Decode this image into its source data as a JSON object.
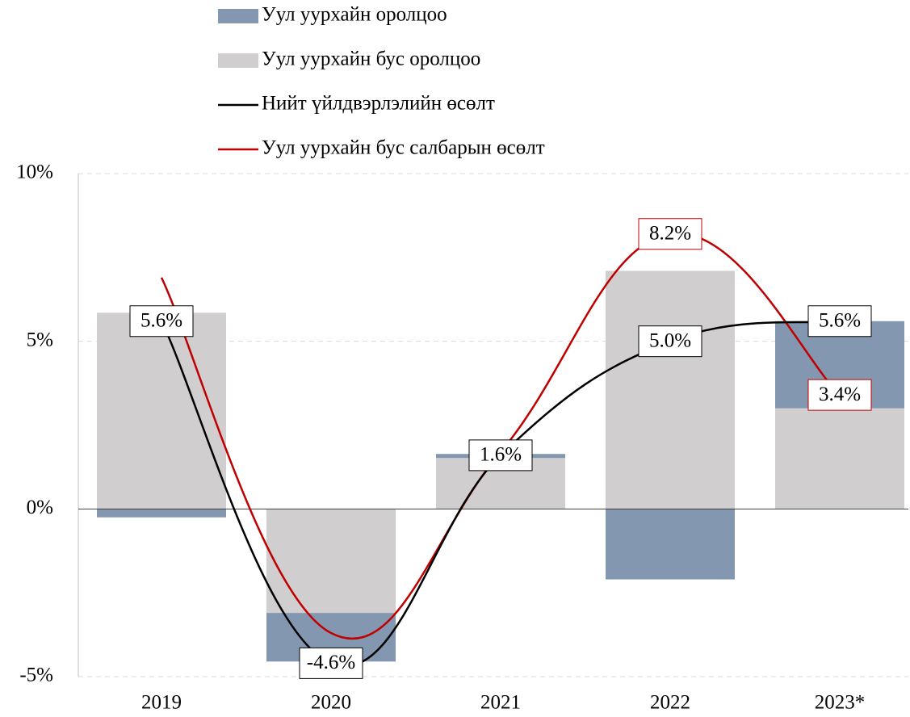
{
  "chart_data": {
    "type": "bar_line",
    "categories": [
      "2019",
      "2020",
      "2021",
      "2022",
      "2023*"
    ],
    "series": [
      {
        "name": "Уул уурхайн оролцоо",
        "type": "bar",
        "color": "#8497b0",
        "values": [
          -0.25,
          -1.45,
          0.12,
          -2.1,
          2.6
        ]
      },
      {
        "name": "Уул уурхайн бус оролцоо",
        "type": "bar",
        "color": "#d0cece",
        "values": [
          5.85,
          -3.1,
          1.52,
          7.1,
          3.0
        ]
      },
      {
        "name": "Нийт үйлдвэрлэлийн өсөлт",
        "type": "line",
        "color": "#000000",
        "values": [
          5.6,
          -4.6,
          1.6,
          5.0,
          5.6
        ],
        "value_labels": [
          "5.6%",
          "-4.6%",
          "1.6%",
          "5.0%",
          "5.6%"
        ]
      },
      {
        "name": "Уул уурхайн бус салбарын өсөлт",
        "type": "line",
        "color": "#c00000",
        "values": [
          6.9,
          -3.7,
          1.7,
          8.2,
          3.4
        ],
        "value_labels": [
          null,
          null,
          null,
          "8.2%",
          "3.4%"
        ]
      }
    ],
    "ylim": [
      -5,
      10
    ],
    "yticks": [
      {
        "value": -5,
        "label": "-5%"
      },
      {
        "value": 0,
        "label": "0%"
      },
      {
        "value": 5,
        "label": "5%"
      },
      {
        "value": 10,
        "label": "10%"
      }
    ],
    "grid": true,
    "legend": "top"
  }
}
